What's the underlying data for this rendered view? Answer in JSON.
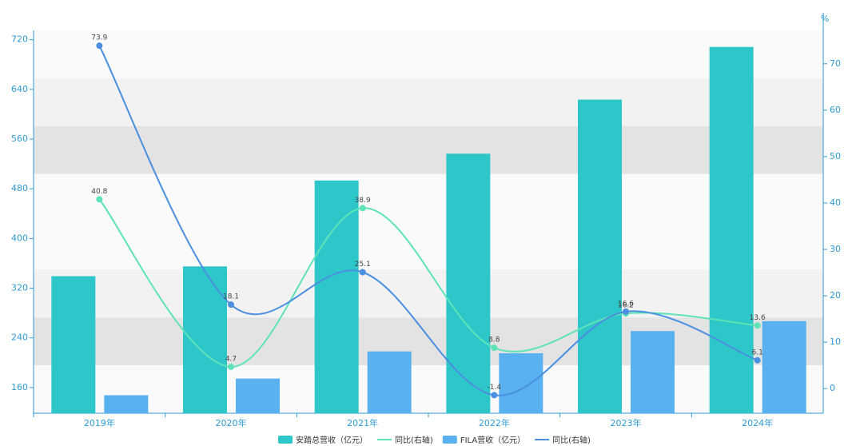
{
  "chart_data": {
    "type": "bar-line",
    "categories": [
      "2019年",
      "2020年",
      "2021年",
      "2022年",
      "2023年",
      "2024年"
    ],
    "series": [
      {
        "name": "安踏总营收（亿元）",
        "type": "bar",
        "color": "#2ec7c9",
        "values": [
          339.3,
          355.1,
          493.3,
          536.5,
          623.6,
          708.3
        ]
      },
      {
        "name": "同比(右轴)",
        "type": "line",
        "axis": "y2",
        "color": "#5ee3b8",
        "values": [
          40.8,
          4.7,
          38.9,
          8.8,
          16.2,
          13.6
        ]
      },
      {
        "name": "FILA营收（亿元）",
        "type": "bar",
        "color": "#5ab1ef",
        "values": [
          147.7,
          174.5,
          218.2,
          215.2,
          251.0,
          266.9
        ]
      },
      {
        "name": "同比(右轴)",
        "type": "line",
        "axis": "y2",
        "color": "#4a8fe0",
        "values": [
          73.9,
          18.1,
          25.1,
          -1.4,
          16.6,
          6.1
        ]
      }
    ],
    "ylim": [
      118.7,
      735
    ],
    "yticks": [
      160,
      240,
      320,
      400,
      480,
      560,
      640,
      720
    ],
    "y2lim": [
      -5.3,
      77.2
    ],
    "y2ticks": [
      0,
      10,
      20,
      30,
      40,
      50,
      60,
      70
    ],
    "y2label": "%"
  }
}
